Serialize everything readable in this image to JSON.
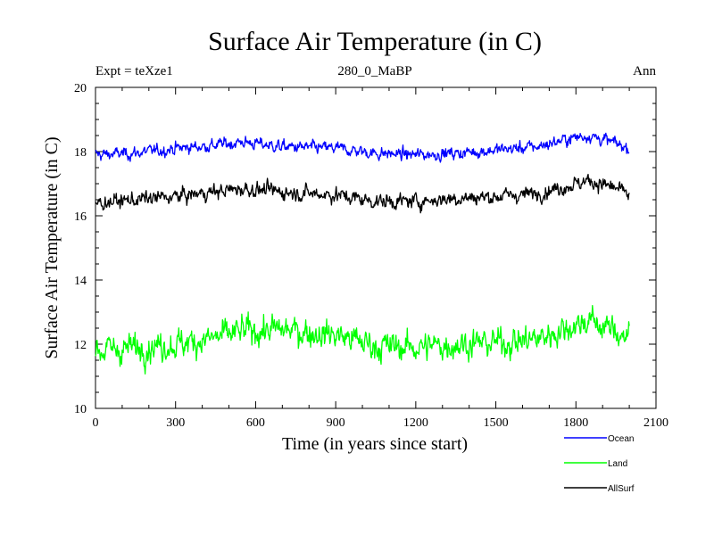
{
  "chart_data": {
    "type": "line",
    "title": "Surface Air Temperature (in C)",
    "subtitle_left": "Expt = teXze1",
    "subtitle_center": "280_0_MaBP",
    "subtitle_right": "Ann",
    "xlabel": "Time (in years since start)",
    "ylabel": "Surface Air Temperature (in C)",
    "xlim": [
      0,
      2100
    ],
    "ylim": [
      10,
      20
    ],
    "x_ticks": [
      0,
      300,
      600,
      900,
      1200,
      1500,
      1800,
      2100
    ],
    "y_ticks": [
      10,
      12,
      14,
      16,
      18,
      20
    ],
    "x_tick_labels": [
      "0",
      "300",
      "600",
      "900",
      "1200",
      "1500",
      "1800",
      "2100"
    ],
    "y_tick_labels": [
      "10",
      "12",
      "14",
      "16",
      "18",
      "20"
    ],
    "n_years": 2000,
    "series": [
      {
        "name": "Ocean",
        "color": "#0000ff",
        "noise": 0.18,
        "anchor_x": [
          0,
          150,
          300,
          450,
          550,
          700,
          900,
          1050,
          1200,
          1350,
          1500,
          1650,
          1800,
          1850,
          1950,
          2000
        ],
        "anchor_y": [
          17.9,
          17.95,
          18.1,
          18.2,
          18.3,
          18.15,
          18.1,
          17.95,
          17.9,
          17.95,
          18.05,
          18.15,
          18.45,
          18.5,
          18.25,
          18.1
        ]
      },
      {
        "name": "Land",
        "color": "#00ff00",
        "noise": 0.42,
        "anchor_x": [
          0,
          150,
          300,
          450,
          550,
          700,
          900,
          1050,
          1200,
          1350,
          1500,
          1650,
          1800,
          1850,
          1950,
          2000
        ],
        "anchor_y": [
          11.8,
          11.9,
          12.0,
          12.2,
          12.4,
          12.45,
          12.3,
          11.95,
          11.9,
          12.0,
          12.05,
          12.15,
          12.6,
          12.75,
          12.4,
          12.2
        ]
      },
      {
        "name": "AllSurf",
        "color": "#000000",
        "noise": 0.22,
        "anchor_x": [
          0,
          150,
          300,
          450,
          550,
          700,
          900,
          1050,
          1200,
          1350,
          1500,
          1650,
          1800,
          1850,
          1950,
          2000
        ],
        "anchor_y": [
          16.4,
          16.5,
          16.6,
          16.75,
          16.85,
          16.75,
          16.65,
          16.45,
          16.45,
          16.55,
          16.6,
          16.7,
          17.0,
          17.1,
          16.85,
          16.65
        ]
      }
    ]
  }
}
